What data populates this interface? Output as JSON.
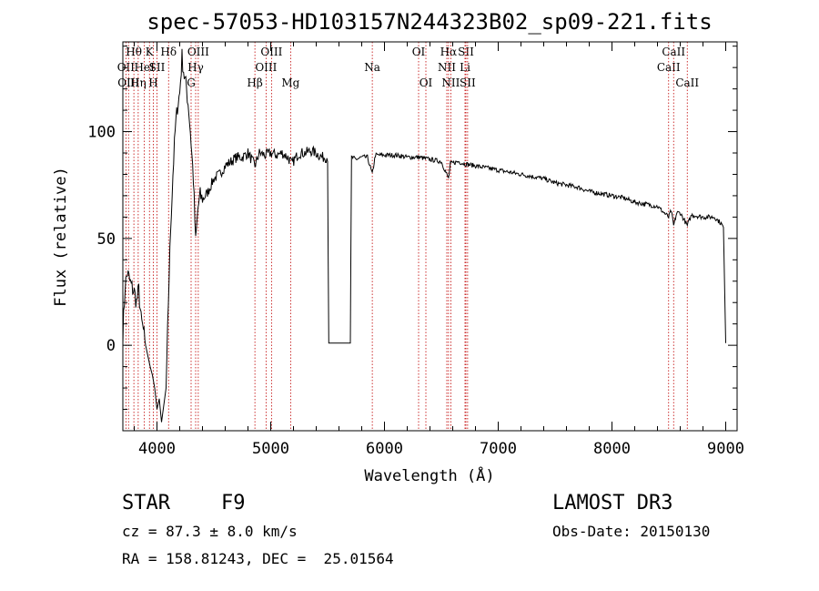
{
  "chart_data": {
    "type": "line",
    "title": "spec-57053-HD103157N244323B02_sp09-221.fits",
    "xlabel": "Wavelength (Å)",
    "ylabel": "Flux (relative)",
    "xlim": [
      3700,
      9100
    ],
    "ylim": [
      -40,
      142
    ],
    "x_ticks": [
      4000,
      5000,
      6000,
      7000,
      8000,
      9000
    ],
    "y_ticks": [
      0,
      50,
      100
    ],
    "x_tick_labels": [
      "4000",
      "5000",
      "6000",
      "7000",
      "8000",
      "9000"
    ],
    "y_tick_labels": [
      "0",
      "50",
      "100"
    ],
    "colors": {
      "spectrum": "#000000",
      "line_markers": "#c00000",
      "axes": "#000000"
    },
    "spectrum": [
      [
        3700,
        5
      ],
      [
        3720,
        28
      ],
      [
        3740,
        34
      ],
      [
        3760,
        30
      ],
      [
        3780,
        27
      ],
      [
        3800,
        25
      ],
      [
        3820,
        20
      ],
      [
        3840,
        26
      ],
      [
        3860,
        12
      ],
      [
        3880,
        7
      ],
      [
        3900,
        0
      ],
      [
        3920,
        -5
      ],
      [
        3940,
        -10
      ],
      [
        3960,
        -14
      ],
      [
        3980,
        -20
      ],
      [
        4000,
        -30
      ],
      [
        4020,
        -25
      ],
      [
        4040,
        -36
      ],
      [
        4060,
        -28
      ],
      [
        4080,
        -20
      ],
      [
        4100,
        20
      ],
      [
        4120,
        55
      ],
      [
        4140,
        80
      ],
      [
        4160,
        100
      ],
      [
        4180,
        112
      ],
      [
        4200,
        118
      ],
      [
        4220,
        135
      ],
      [
        4240,
        126
      ],
      [
        4260,
        120
      ],
      [
        4280,
        110
      ],
      [
        4300,
        95
      ],
      [
        4320,
        78
      ],
      [
        4340,
        48
      ],
      [
        4360,
        64
      ],
      [
        4380,
        70
      ],
      [
        4400,
        68
      ],
      [
        4450,
        72
      ],
      [
        4500,
        78
      ],
      [
        4550,
        80
      ],
      [
        4600,
        84
      ],
      [
        4650,
        86
      ],
      [
        4700,
        88
      ],
      [
        4750,
        88
      ],
      [
        4800,
        90
      ],
      [
        4861,
        84
      ],
      [
        4900,
        90
      ],
      [
        4950,
        89
      ],
      [
        5000,
        90
      ],
      [
        5050,
        89
      ],
      [
        5100,
        90
      ],
      [
        5150,
        88
      ],
      [
        5184,
        85
      ],
      [
        5250,
        90
      ],
      [
        5300,
        90
      ],
      [
        5350,
        91
      ],
      [
        5400,
        90
      ],
      [
        5450,
        88
      ],
      [
        5500,
        88
      ],
      [
        5510,
        1
      ],
      [
        5700,
        1
      ],
      [
        5710,
        88
      ],
      [
        5750,
        87
      ],
      [
        5800,
        88
      ],
      [
        5850,
        88
      ],
      [
        5893,
        80
      ],
      [
        5920,
        89
      ],
      [
        6000,
        89
      ],
      [
        6100,
        89
      ],
      [
        6200,
        88
      ],
      [
        6300,
        88
      ],
      [
        6400,
        87
      ],
      [
        6500,
        86
      ],
      [
        6563,
        78
      ],
      [
        6580,
        85
      ],
      [
        6650,
        86
      ],
      [
        6700,
        85
      ],
      [
        6800,
        84
      ],
      [
        6900,
        83
      ],
      [
        7000,
        82
      ],
      [
        7100,
        81
      ],
      [
        7200,
        80
      ],
      [
        7300,
        79
      ],
      [
        7400,
        78
      ],
      [
        7500,
        76
      ],
      [
        7600,
        75
      ],
      [
        7700,
        74
      ],
      [
        7800,
        72
      ],
      [
        7900,
        71
      ],
      [
        8000,
        70
      ],
      [
        8100,
        69
      ],
      [
        8200,
        67
      ],
      [
        8300,
        66
      ],
      [
        8400,
        65
      ],
      [
        8498,
        60
      ],
      [
        8520,
        63
      ],
      [
        8542,
        56
      ],
      [
        8570,
        62
      ],
      [
        8600,
        62
      ],
      [
        8662,
        56
      ],
      [
        8700,
        61
      ],
      [
        8800,
        60
      ],
      [
        8900,
        60
      ],
      [
        8960,
        57
      ],
      [
        8980,
        55
      ],
      [
        9000,
        1
      ]
    ],
    "line_markers": [
      {
        "wavelength": 3727,
        "label": "OII",
        "row": 2
      },
      {
        "wavelength": 3750,
        "label": "OIII",
        "row": 3
      },
      {
        "wavelength": 3797,
        "label": "Hθ",
        "row": 1
      },
      {
        "wavelength": 3835,
        "label": "Hη",
        "row": 3
      },
      {
        "wavelength": 3889,
        "label": "HeI",
        "row": 2
      },
      {
        "wavelength": 3934,
        "label": "K",
        "row": 1
      },
      {
        "wavelength": 3968,
        "label": "H",
        "row": 3
      },
      {
        "wavelength": 4000,
        "label": "SII",
        "row": 2
      },
      {
        "wavelength": 4102,
        "label": "Hδ",
        "row": 1
      },
      {
        "wavelength": 4300,
        "label": "G",
        "row": 3
      },
      {
        "wavelength": 4340,
        "label": "Hγ",
        "row": 2
      },
      {
        "wavelength": 4363,
        "label": "OIII",
        "row": 1
      },
      {
        "wavelength": 4861,
        "label": "Hβ",
        "row": 3
      },
      {
        "wavelength": 4959,
        "label": "OIII",
        "row": 2
      },
      {
        "wavelength": 5007,
        "label": "OIII",
        "row": 1
      },
      {
        "wavelength": 5175,
        "label": "Mg",
        "row": 3
      },
      {
        "wavelength": 5893,
        "label": "Na",
        "row": 2
      },
      {
        "wavelength": 6300,
        "label": "OI",
        "row": 1
      },
      {
        "wavelength": 6364,
        "label": "OI",
        "row": 3
      },
      {
        "wavelength": 6548,
        "label": "NII",
        "row": 2
      },
      {
        "wavelength": 6563,
        "label": "Hα",
        "row": 1
      },
      {
        "wavelength": 6583,
        "label": "NII",
        "row": 3
      },
      {
        "wavelength": 6708,
        "label": "Li",
        "row": 2
      },
      {
        "wavelength": 6716,
        "label": "SII",
        "row": 1
      },
      {
        "wavelength": 6731,
        "label": "SII",
        "row": 3
      },
      {
        "wavelength": 8498,
        "label": "CaII",
        "row": 2
      },
      {
        "wavelength": 8542,
        "label": "CaII",
        "row": 1
      },
      {
        "wavelength": 8662,
        "label": "CaII",
        "row": 3
      }
    ]
  },
  "footer": {
    "object_class": "STAR",
    "subclass": "F9",
    "survey": "LAMOST DR3",
    "redshift": "cz = 87.3 ± 8.0 km/s",
    "obs_date": "Obs-Date: 20150130",
    "coords": "RA = 158.81243, DEC =  25.01564"
  }
}
